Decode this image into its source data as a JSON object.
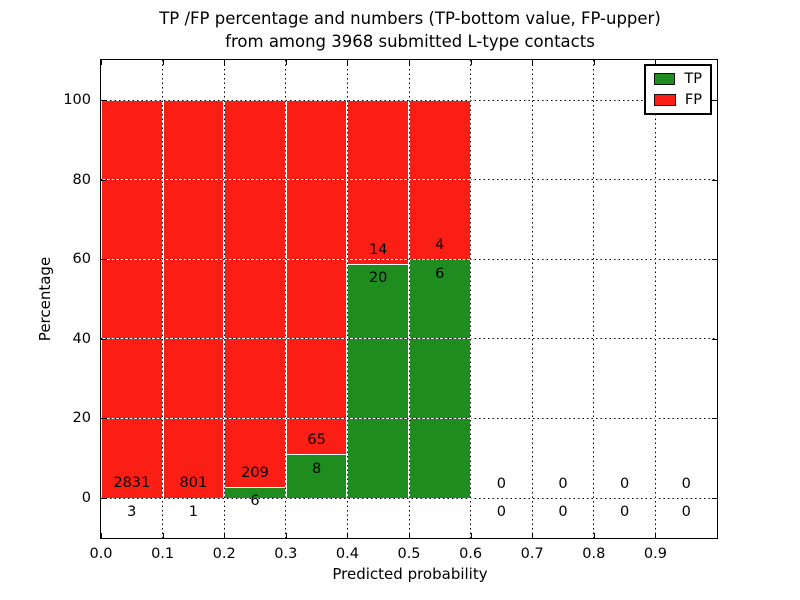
{
  "title": {
    "line1": "TP /FP percentage and numbers (TP-bottom value, FP-upper)",
    "line2": "from among 3968 submitted L-type contacts"
  },
  "axes": {
    "xlabel": "Predicted probability",
    "ylabel": "Percentage",
    "x_tick_labels": [
      "0.0",
      "0.1",
      "0.2",
      "0.3",
      "0.4",
      "0.5",
      "0.6",
      "0.7",
      "0.8",
      "0.9"
    ],
    "y_tick_labels": [
      "0",
      "20",
      "40",
      "60",
      "80",
      "100"
    ]
  },
  "legend": {
    "items": [
      {
        "label": "TP",
        "color_key": "tp"
      },
      {
        "label": "FP",
        "color_key": "fp"
      }
    ],
    "position": "top-right"
  },
  "colors": {
    "tp": "#1e8c1e",
    "fp": "#fb1e15",
    "grid": "#000000",
    "text": "#000000"
  },
  "chart_data": {
    "type": "bar",
    "stacked": true,
    "normalized_to_100_percent": true,
    "title": "TP /FP percentage and numbers (TP-bottom value, FP-upper) from among 3968 submitted L-type contacts",
    "xlabel": "Predicted probability",
    "ylabel": "Percentage",
    "xlim": [
      0.0,
      1.0
    ],
    "ylim": [
      -10,
      110
    ],
    "x_ticks": [
      0.0,
      0.1,
      0.2,
      0.3,
      0.4,
      0.5,
      0.6,
      0.7,
      0.8,
      0.9
    ],
    "y_ticks": [
      0,
      20,
      40,
      60,
      80,
      100
    ],
    "grid": "dotted",
    "legend_entries": [
      "TP",
      "FP"
    ],
    "total_submitted_contacts": 3968,
    "series_note": "TP count is bottom label, FP count is upper label; bar heights are TP/FP percentage shares summing to 100%",
    "bins": [
      {
        "range": [
          0.0,
          0.1
        ],
        "tp": 3,
        "fp": 2831,
        "tp_pct": 0.11,
        "fp_pct": 99.89
      },
      {
        "range": [
          0.1,
          0.2
        ],
        "tp": 1,
        "fp": 801,
        "tp_pct": 0.12,
        "fp_pct": 99.88
      },
      {
        "range": [
          0.2,
          0.3
        ],
        "tp": 6,
        "fp": 209,
        "tp_pct": 2.79,
        "fp_pct": 97.21
      },
      {
        "range": [
          0.3,
          0.4
        ],
        "tp": 8,
        "fp": 65,
        "tp_pct": 10.96,
        "fp_pct": 89.04
      },
      {
        "range": [
          0.4,
          0.5
        ],
        "tp": 20,
        "fp": 14,
        "tp_pct": 58.82,
        "fp_pct": 41.18
      },
      {
        "range": [
          0.5,
          0.6
        ],
        "tp": 6,
        "fp": 4,
        "tp_pct": 60.0,
        "fp_pct": 40.0
      },
      {
        "range": [
          0.6,
          0.7
        ],
        "tp": 0,
        "fp": 0,
        "tp_pct": null,
        "fp_pct": null
      },
      {
        "range": [
          0.7,
          0.8
        ],
        "tp": 0,
        "fp": 0,
        "tp_pct": null,
        "fp_pct": null
      },
      {
        "range": [
          0.8,
          0.9
        ],
        "tp": 0,
        "fp": 0,
        "tp_pct": null,
        "fp_pct": null
      },
      {
        "range": [
          0.9,
          1.0
        ],
        "tp": 0,
        "fp": 0,
        "tp_pct": null,
        "fp_pct": null
      }
    ]
  }
}
